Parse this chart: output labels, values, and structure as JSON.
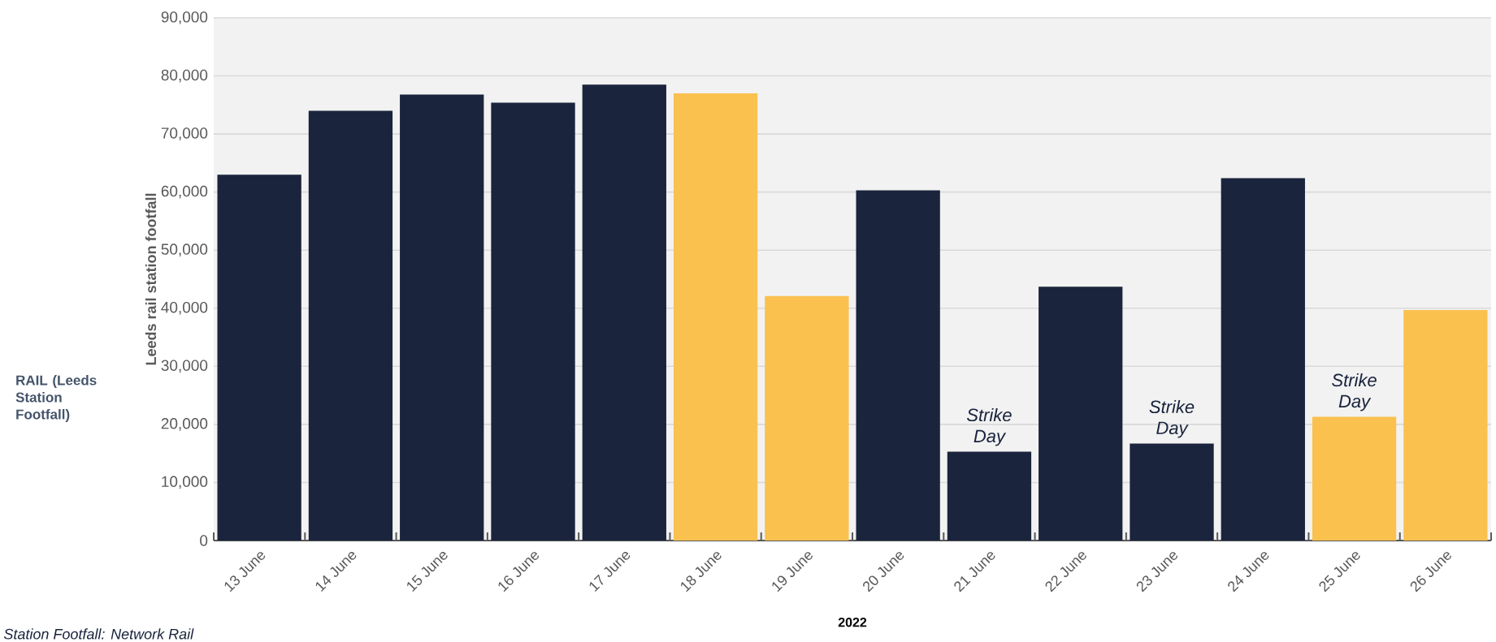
{
  "chart_data": {
    "type": "bar",
    "categories": [
      "13 June",
      "14 June",
      "15 June",
      "16 June",
      "17 June",
      "18 June",
      "19 June",
      "20 June",
      "21 June",
      "22 June",
      "23 June",
      "24 June",
      "25 June",
      "26 June"
    ],
    "values": [
      63000,
      74000,
      76800,
      75400,
      78500,
      77000,
      42100,
      60300,
      15300,
      43700,
      16700,
      62400,
      21300,
      39700
    ],
    "colors": [
      "#1a243d",
      "#1a243d",
      "#1a243d",
      "#1a243d",
      "#1a243d",
      "#fac14f",
      "#fac14f",
      "#1a243d",
      "#1a243d",
      "#1a243d",
      "#1a243d",
      "#1a243d",
      "#fac14f",
      "#fac14f"
    ],
    "xlabel": "2022",
    "ylabel": "Leeds rail station footfall",
    "ylim": [
      0,
      90000
    ],
    "yticks": [
      0,
      {
        "value": 10000,
        "label": "10,000"
      },
      {
        "value": 20000,
        "label": "20,000"
      },
      {
        "value": 30000,
        "label": "30,000"
      },
      {
        "value": 40000,
        "label": "40,000"
      },
      {
        "value": 50000,
        "label": "50,000"
      },
      {
        "value": 60000,
        "label": "60,000"
      },
      {
        "value": 70000,
        "label": "70,000"
      },
      {
        "value": 80000,
        "label": "80,000"
      },
      {
        "value": 90000,
        "label": "90,000"
      }
    ],
    "grid": "y",
    "annotations": [
      {
        "text": "Strike Day",
        "x": "21 June",
        "y": 15300
      },
      {
        "text": "Strike Day",
        "x": "23 June",
        "y": 16700
      },
      {
        "text": "Strike Day",
        "x": "25 June",
        "y": 21300
      },
      "RAIL (Leeds Station Footfall)",
      "Station Footfall: Network Rail"
    ]
  }
}
